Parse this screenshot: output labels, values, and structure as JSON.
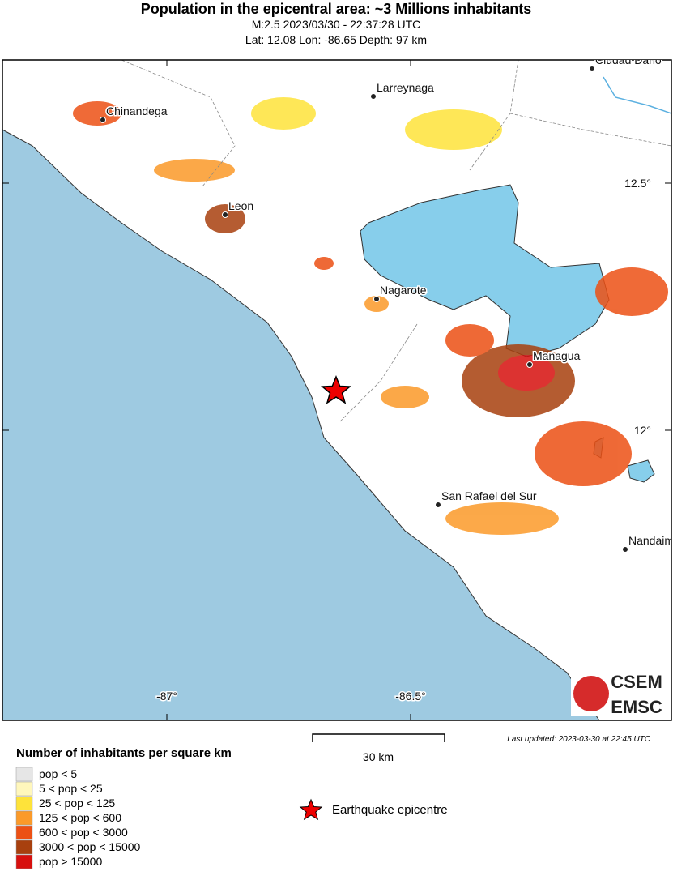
{
  "header": {
    "title": "Population in the epicentral area: ~3 Millions inhabitants",
    "subtitle": "M:2.5 2023/03/30 - 22:37:28 UTC",
    "location": "Lat: 12.08 Lon: -86.65 Depth: 97 km"
  },
  "map": {
    "cities": [
      "Ciudad Dario",
      "Larreynaga",
      "Chinandega",
      "Leon",
      "Nagarote",
      "Managua",
      "San Rafael del Sur",
      "Nandaime"
    ],
    "lon_ticks": [
      "-87°",
      "-86.5°"
    ],
    "lat_ticks": [
      "12.5°",
      "12°"
    ]
  },
  "scale_bar": "30 km",
  "last_updated": "Last updated: 2023-03-30 at 22:45 UTC",
  "legend": {
    "title": "Number of inhabitants per square km",
    "items": [
      {
        "label": "pop < 5",
        "color": "#e6e6e6"
      },
      {
        "label": "5 < pop < 25",
        "color": "#fff7bc"
      },
      {
        "label": "25 < pop < 125",
        "color": "#fee33a"
      },
      {
        "label": "125 < pop < 600",
        "color": "#fb9a29"
      },
      {
        "label": "600 < pop < 3000",
        "color": "#ec5014"
      },
      {
        "label": "3000 < pop < 15000",
        "color": "#a8400e"
      },
      {
        "label": "pop > 15000",
        "color": "#d7100e"
      }
    ],
    "epicentre": "Earthquake epicentre"
  },
  "logo": {
    "top": "CSEM",
    "bottom": "EMSC"
  }
}
